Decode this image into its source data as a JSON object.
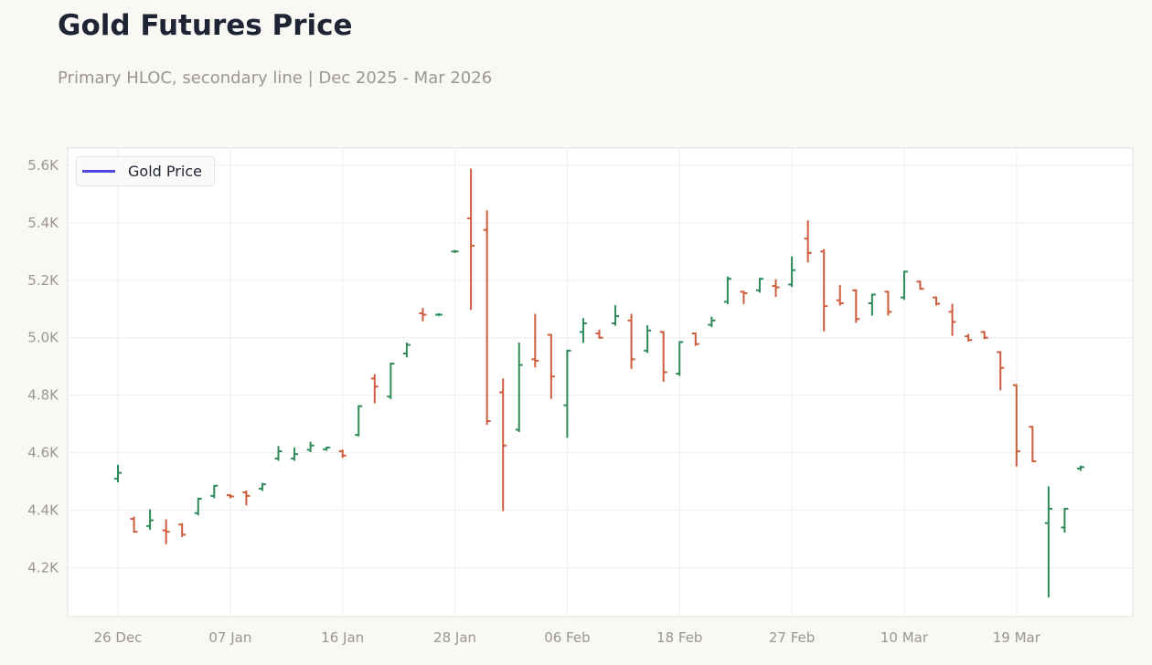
{
  "header": {
    "title": "Gold Futures Price",
    "subtitle": "Primary HLOC, secondary line | Dec 2025 - Mar 2026"
  },
  "colors": {
    "up": "#2e8b57",
    "down": "#cd5c3c",
    "legend_line": "#4f46e5",
    "grid": "#eeeeee"
  },
  "chart_data": {
    "type": "ohlc",
    "title": "Gold Futures Price",
    "legend": {
      "entries": [
        "Gold Price"
      ],
      "placement": "top-left"
    },
    "ylim": [
      4030,
      5660
    ],
    "y_ticks": [
      {
        "v": 4200,
        "label": "4.2K"
      },
      {
        "v": 4400,
        "label": "4.4K"
      },
      {
        "v": 4600,
        "label": "4.6K"
      },
      {
        "v": 4800,
        "label": "4.8K"
      },
      {
        "v": 5000,
        "label": "5.0K"
      },
      {
        "v": 5200,
        "label": "5.2K"
      },
      {
        "v": 5400,
        "label": "5.4K"
      },
      {
        "v": 5600,
        "label": "5.6K"
      }
    ],
    "x_ticks": [
      {
        "i": 0,
        "label": "26 Dec"
      },
      {
        "i": 7,
        "label": "07 Jan"
      },
      {
        "i": 14,
        "label": "16 Jan"
      },
      {
        "i": 21,
        "label": "28 Jan"
      },
      {
        "i": 28,
        "label": "06 Feb"
      },
      {
        "i": 35,
        "label": "18 Feb"
      },
      {
        "i": 42,
        "label": "27 Feb"
      },
      {
        "i": 49,
        "label": "10 Mar"
      },
      {
        "i": 56,
        "label": "19 Mar"
      }
    ],
    "grid": true,
    "dates": [
      "2025-12-26",
      "2025-12-29",
      "2025-12-30",
      "2025-12-31",
      "2026-01-02",
      "2026-01-05",
      "2026-01-06",
      "2026-01-07",
      "2026-01-08",
      "2026-01-09",
      "2026-01-12",
      "2026-01-13",
      "2026-01-14",
      "2026-01-15",
      "2026-01-16",
      "2026-01-20",
      "2026-01-21",
      "2026-01-22",
      "2026-01-23",
      "2026-01-26",
      "2026-01-27",
      "2026-01-28",
      "2026-01-29",
      "2026-01-30",
      "2026-02-02",
      "2026-02-03",
      "2026-02-04",
      "2026-02-05",
      "2026-02-06",
      "2026-02-09",
      "2026-02-10",
      "2026-02-11",
      "2026-02-12",
      "2026-02-13",
      "2026-02-17",
      "2026-02-18",
      "2026-02-19",
      "2026-02-20",
      "2026-02-23",
      "2026-02-24",
      "2026-02-25",
      "2026-02-26",
      "2026-02-27",
      "2026-03-02",
      "2026-03-03",
      "2026-03-04",
      "2026-03-05",
      "2026-03-06",
      "2026-03-09",
      "2026-03-10",
      "2026-03-11",
      "2026-03-12",
      "2026-03-13",
      "2026-03-16",
      "2026-03-17",
      "2026-03-18",
      "2026-03-19",
      "2026-03-20",
      "2026-03-23",
      "2026-03-24",
      "2026-03-25"
    ],
    "ohlc": [
      [
        4510,
        4555,
        4500,
        4530
      ],
      [
        4370,
        4375,
        4325,
        4325
      ],
      [
        4345,
        4400,
        4335,
        4365
      ],
      [
        4330,
        4365,
        4285,
        4325
      ],
      [
        4350,
        4352,
        4310,
        4315
      ],
      [
        4390,
        4440,
        4385,
        4440
      ],
      [
        4450,
        4485,
        4445,
        4485
      ],
      [
        4452,
        4453,
        4445,
        4448
      ],
      [
        4462,
        4465,
        4420,
        4450
      ],
      [
        4475,
        4492,
        4470,
        4490
      ],
      [
        4580,
        4620,
        4575,
        4605
      ],
      [
        4580,
        4615,
        4575,
        4595
      ],
      [
        4610,
        4635,
        4605,
        4625
      ],
      [
        4612,
        4618,
        4610,
        4618
      ],
      [
        4605,
        4608,
        4585,
        4590
      ],
      [
        4662,
        4762,
        4660,
        4762
      ],
      [
        4858,
        4870,
        4775,
        4830
      ],
      [
        4795,
        4910,
        4790,
        4910
      ],
      [
        4945,
        4980,
        4935,
        4975
      ],
      [
        5085,
        5100,
        5060,
        5080
      ],
      [
        5080,
        5082,
        5078,
        5080
      ],
      [
        5300,
        5302,
        5298,
        5300
      ],
      [
        5415,
        5585,
        5100,
        5320
      ],
      [
        5375,
        5440,
        4700,
        4710
      ],
      [
        4810,
        4855,
        4400,
        4625
      ],
      [
        4680,
        4980,
        4675,
        4905
      ],
      [
        4925,
        5080,
        4900,
        4920
      ],
      [
        5010,
        5010,
        4790,
        4865
      ],
      [
        4765,
        4955,
        4655,
        4955
      ],
      [
        5020,
        5065,
        4985,
        5050
      ],
      [
        5015,
        5025,
        5000,
        5000
      ],
      [
        5050,
        5110,
        5045,
        5075
      ],
      [
        5060,
        5080,
        4895,
        4925
      ],
      [
        4955,
        5040,
        4950,
        5025
      ],
      [
        5020,
        5020,
        4850,
        4880
      ],
      [
        4875,
        4985,
        4870,
        4985
      ],
      [
        5015,
        5015,
        4975,
        4978
      ],
      [
        5045,
        5070,
        5040,
        5060
      ],
      [
        5125,
        5210,
        5120,
        5205
      ],
      [
        5160,
        5160,
        5120,
        5155
      ],
      [
        5165,
        5205,
        5160,
        5205
      ],
      [
        5180,
        5200,
        5145,
        5175
      ],
      [
        5185,
        5280,
        5180,
        5235
      ],
      [
        5345,
        5405,
        5265,
        5295
      ],
      [
        5300,
        5305,
        5025,
        5110
      ],
      [
        5130,
        5180,
        5115,
        5120
      ],
      [
        5165,
        5165,
        5055,
        5065
      ],
      [
        5120,
        5150,
        5080,
        5150
      ],
      [
        5160,
        5160,
        5080,
        5090
      ],
      [
        5140,
        5230,
        5135,
        5230
      ],
      [
        5195,
        5195,
        5170,
        5170
      ],
      [
        5140,
        5140,
        5115,
        5118
      ],
      [
        5090,
        5115,
        5010,
        5055
      ],
      [
        5005,
        5010,
        4990,
        4992
      ],
      [
        5020,
        5020,
        4998,
        5000
      ],
      [
        4950,
        4950,
        4820,
        4895
      ],
      [
        4835,
        4835,
        4555,
        4605
      ],
      [
        4690,
        4690,
        4570,
        4570
      ],
      [
        4355,
        4480,
        4100,
        4405
      ],
      [
        4340,
        4405,
        4325,
        4405
      ],
      [
        4545,
        4552,
        4540,
        4550
      ]
    ]
  }
}
